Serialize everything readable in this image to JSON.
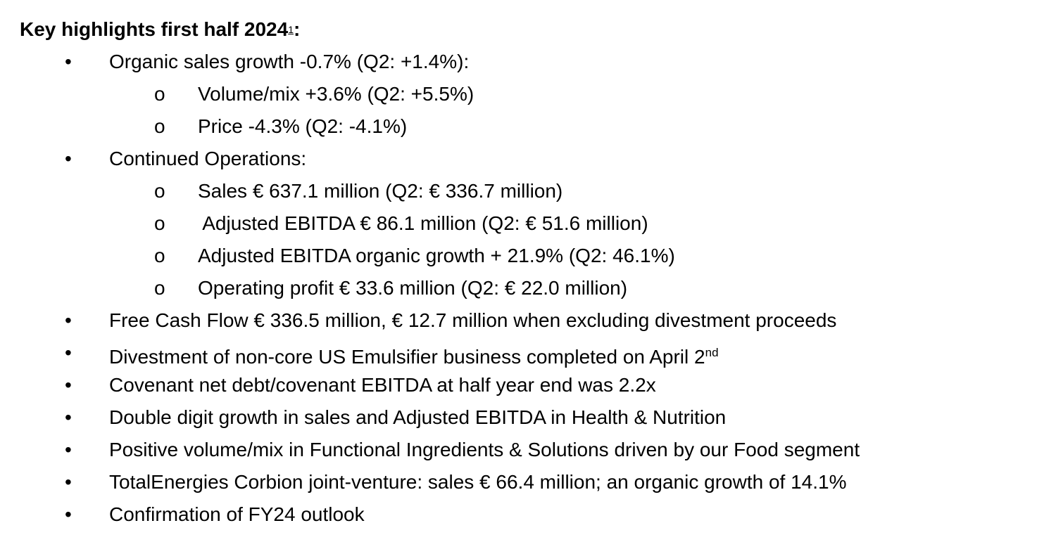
{
  "title": "Key highlights first half 2024",
  "title_footnote": "1",
  "title_end": ":",
  "items": [
    {
      "text": "Organic sales growth -0.7% (Q2: +1.4%):",
      "sub": [
        "Volume/mix +3.6% (Q2: +5.5%)",
        "Price -4.3% (Q2: -4.1%)"
      ]
    },
    {
      "text": "Continued Operations:",
      "sub": [
        "Sales € 637.1 million (Q2: € 336.7 million)",
        " Adjusted EBITDA € 86.1 million (Q2: € 51.6 million)",
        "Adjusted EBITDA organic growth + 21.9% (Q2: 46.1%)",
        "Operating profit € 33.6 million (Q2: € 22.0 million)"
      ]
    },
    {
      "text": "Free Cash Flow € 336.5 million, € 12.7 million when excluding divestment proceeds"
    },
    {
      "text": "Divestment of non-core US Emulsifier business completed on April 2",
      "sup": "nd"
    },
    {
      "text": "Covenant net debt/covenant EBITDA at half year end was 2.2x"
    },
    {
      "text": "Double digit growth in sales and Adjusted EBITDA in Health & Nutrition"
    },
    {
      "text": "Positive volume/mix in Functional Ingredients & Solutions driven by our Food segment"
    },
    {
      "text": "TotalEnergies Corbion joint-venture: sales € 66.4 million; an organic growth of 14.1%"
    },
    {
      "text": "Confirmation of FY24 outlook"
    }
  ]
}
